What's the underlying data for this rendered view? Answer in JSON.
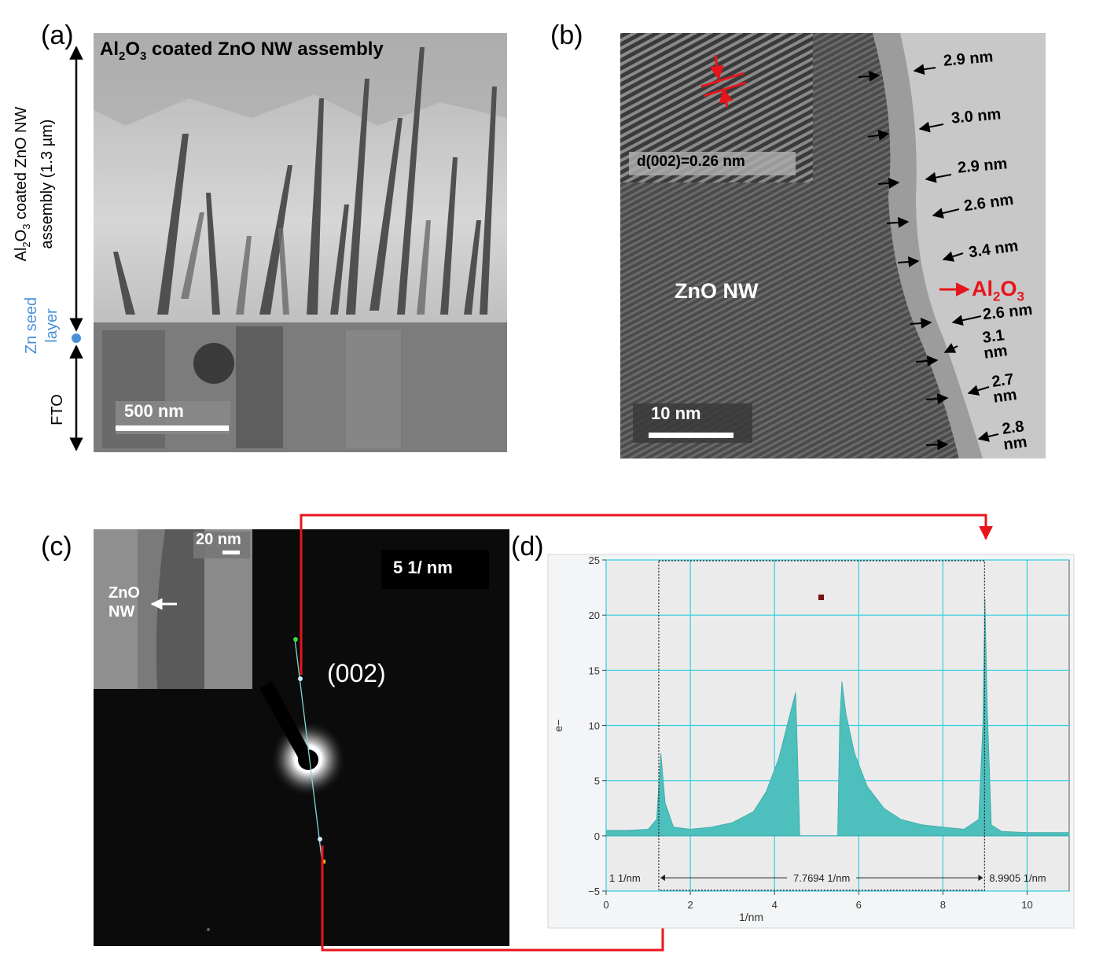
{
  "panel_a": {
    "label": "(a)",
    "title_pre": "Al",
    "title_sub1": "2",
    "title_mid": "O",
    "title_sub2": "3",
    "title_post": " coated ZnO NW assembly",
    "side_assembly_line1_pre": "Al",
    "side_sub1": "2",
    "side_mid": "O",
    "side_sub2": "3",
    "side_assembly_line1_post": " coated ZnO NW",
    "side_assembly_line2": "assembly (1.3 µm)",
    "side_seed_line1": "Zn seed",
    "side_seed_line2": "layer",
    "side_fto": "FTO",
    "scalebar": "500 nm",
    "colors": {
      "seed": "#4a90d9"
    }
  },
  "panel_b": {
    "label": "(b)",
    "inset_label": "d(002)=0.26 nm",
    "nw_label": "ZnO NW",
    "coating_pre": "Al",
    "coating_sub1": "2",
    "coating_mid": "O",
    "coating_sub2": "3",
    "scalebar": "10 nm",
    "thickness": [
      "2.9 nm",
      "3.0 nm",
      "2.9 nm",
      "2.6 nm",
      "3.4 nm",
      "2.6 nm"
    ],
    "thickness_split": [
      {
        "num": "3.1",
        "unit": "nm"
      },
      {
        "num": "2.7",
        "unit": "nm"
      },
      {
        "num": "2.8",
        "unit": "nm"
      }
    ],
    "colors": {
      "accent": "#e8141b"
    }
  },
  "panel_c": {
    "label": "(c)",
    "inset_scalebar": "20 nm",
    "inset_nw_line1": "ZnO",
    "inset_nw_line2": "NW",
    "scale_box": "5 1/ nm",
    "spot_label": "(002)"
  },
  "panel_d": {
    "label": "(d)",
    "ylabel": "e−",
    "xlabel": "1/nm",
    "xticks": [
      "0",
      "2",
      "4",
      "6",
      "8",
      "10"
    ],
    "yticks": [
      "−5",
      "0",
      "5",
      "10",
      "15",
      "20",
      "25"
    ],
    "measure_left": "1 1/nm",
    "measure_mid": "7.7694 1/nm",
    "measure_right": "8.9905 1/nm"
  },
  "chart_data": {
    "type": "area",
    "xlabel": "1/nm",
    "ylabel": "e−",
    "xlim": [
      0,
      11
    ],
    "ylim": [
      -5,
      25
    ],
    "grid": true,
    "x": [
      0,
      0.5,
      1.0,
      1.2,
      1.3,
      1.4,
      1.6,
      2.0,
      2.5,
      3.0,
      3.5,
      3.8,
      4.1,
      4.3,
      4.5,
      4.55,
      4.6,
      5.5,
      5.55,
      5.6,
      5.7,
      5.9,
      6.2,
      6.6,
      7.0,
      7.5,
      8.0,
      8.5,
      8.85,
      8.95,
      9.0,
      9.05,
      9.15,
      9.4,
      10.0,
      11.0
    ],
    "series": [
      {
        "values": [
          0.5,
          0.5,
          0.6,
          1.5,
          7.5,
          3.0,
          0.8,
          0.6,
          0.8,
          1.2,
          2.2,
          4.0,
          7.0,
          10.0,
          13.0,
          7.0,
          0.0,
          0.0,
          10.5,
          14.0,
          11.0,
          7.5,
          4.5,
          2.5,
          1.5,
          1.0,
          0.8,
          0.6,
          1.5,
          10.0,
          21.5,
          12.0,
          1.0,
          0.4,
          0.3,
          0.3
        ]
      }
    ],
    "annotations": [
      "1 1/nm",
      "7.7694 1/nm",
      "8.9905 1/nm"
    ]
  }
}
